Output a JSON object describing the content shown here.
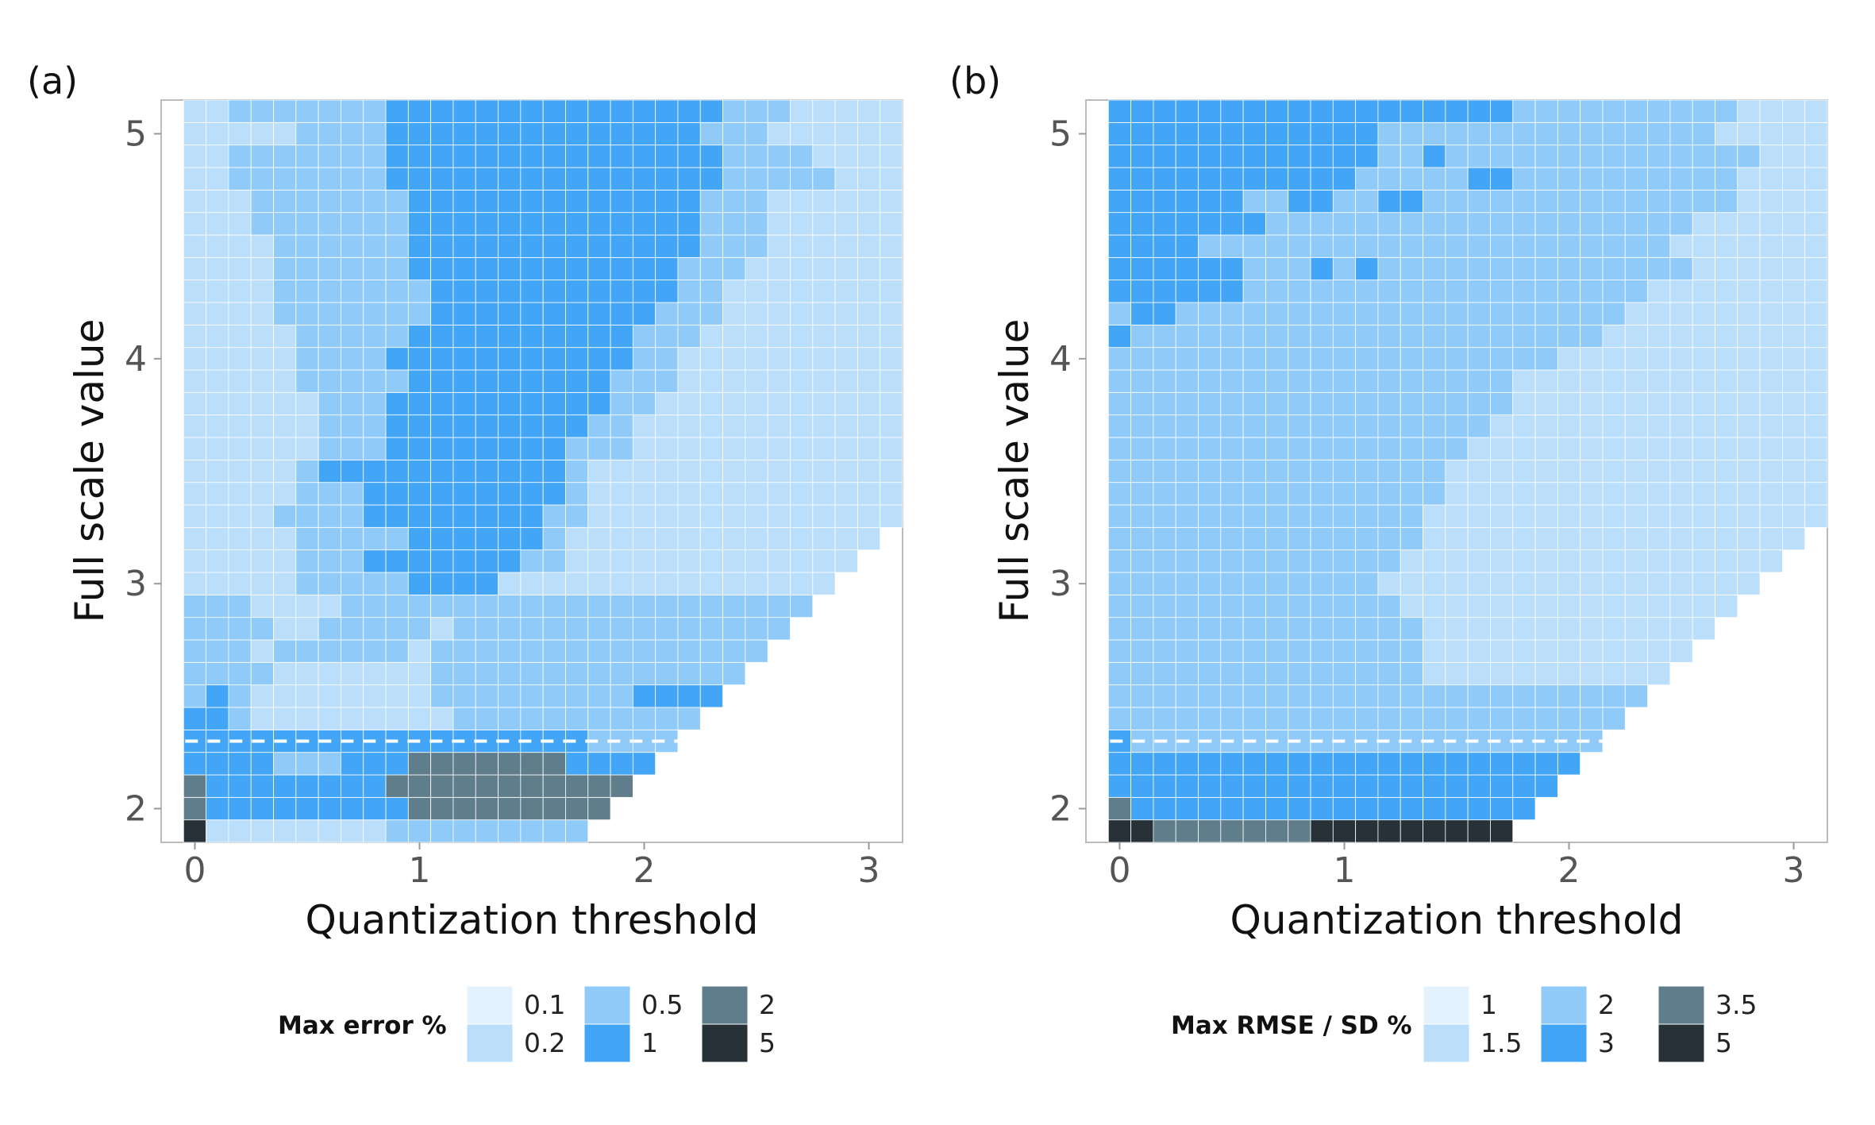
{
  "chart_data": [
    {
      "type": "heatmap",
      "panel_label": "(a)",
      "xlabel": "Quantization threshold",
      "ylabel": "Full scale value",
      "xlim": [
        -0.15,
        3.15
      ],
      "ylim": [
        1.85,
        5.15
      ],
      "x_ticks": [
        "0",
        "1",
        "2",
        "3"
      ],
      "y_ticks": [
        "2",
        "3",
        "4",
        "5"
      ],
      "cell_width": 0.1,
      "cell_height": 0.1,
      "x_start": 0.0,
      "y_start": 1.9,
      "valid_region": "cells exist only where quantization threshold is less than or equal to full scale value minus about 2",
      "dashed_line_y": 2.3,
      "legend": {
        "title": "Max error %",
        "position": "bottom",
        "entries": [
          {
            "label": "0.1",
            "color": "#e3f2fd"
          },
          {
            "label": "0.2",
            "color": "#bbdefb"
          },
          {
            "label": "0.5",
            "color": "#90caf9"
          },
          {
            "label": "1",
            "color": "#42a5f5"
          },
          {
            "label": "2",
            "color": "#607d8b"
          },
          {
            "label": "5",
            "color": "#263238"
          }
        ]
      },
      "rows": [
        {
          "y": 1.9,
          "cells": "511111111222222222"
        },
        {
          "y": 2.0,
          "cells": "4333333333444444444"
        },
        {
          "y": 2.1,
          "cells": "43333333344444444444"
        },
        {
          "y": 2.2,
          "cells": "333322233344444443333"
        },
        {
          "y": 2.3,
          "cells": "3333333333333333332222"
        },
        {
          "y": 2.4,
          "cells": "33211111111122222222222"
        },
        {
          "y": 2.5,
          "cells": "232111111112222222223333"
        },
        {
          "y": 2.6,
          "cells": "2222111111122222222222222"
        },
        {
          "y": 2.7,
          "cells": "22212222221222222222222222"
        },
        {
          "y": 2.8,
          "cells": "222211222221222222222222222"
        },
        {
          "y": 2.9,
          "cells": "2221111222222222222222222222"
        },
        {
          "y": 3.0,
          "cells": "11111222223333111111111111111"
        },
        {
          "y": 3.1,
          "cells": "111112223333333221111111111111"
        },
        {
          "y": 3.2,
          "cells": "1111122222333333211111111111111"
        },
        {
          "y": 3.3,
          "cells": "11112222333333332211111111111111"
        },
        {
          "y": 3.4,
          "cells": "11111222333333333211111111111111"
        },
        {
          "y": 3.5,
          "cells": "11111233333333333211111111111111"
        },
        {
          "y": 3.6,
          "cells": "11111122233333333222111111111111"
        },
        {
          "y": 3.7,
          "cells": "11111122233333333322111111111111"
        },
        {
          "y": 3.8,
          "cells": "11111122233333333332211111111111"
        },
        {
          "y": 3.9,
          "cells": "11111222223333333332221111111111"
        },
        {
          "y": 4.0,
          "cells": "11111222233333333333221111111111"
        },
        {
          "y": 4.1,
          "cells": "11111222223333333333222111111111"
        },
        {
          "y": 4.2,
          "cells": "11112222222333333333322211111111"
        },
        {
          "y": 4.3,
          "cells": "11112222222333333333332211111111"
        },
        {
          "y": 4.4,
          "cells": "11112222223333333333332221111111"
        },
        {
          "y": 4.5,
          "cells": "11112222223333333333333222111111"
        },
        {
          "y": 4.6,
          "cells": "11122222223333333333333222111111"
        },
        {
          "y": 4.7,
          "cells": "11122222223333333333333222111111"
        },
        {
          "y": 4.8,
          "cells": "11222222233333333333333322222111"
        },
        {
          "y": 4.9,
          "cells": "11222222233333333333333322221111"
        },
        {
          "y": 5.0,
          "cells": "11111222233333333333333222111111"
        },
        {
          "y": 5.1,
          "cells": "11222222233333333333333322211111"
        }
      ]
    },
    {
      "type": "heatmap",
      "panel_label": "(b)",
      "xlabel": "Quantization threshold",
      "ylabel": "Full scale value",
      "xlim": [
        -0.15,
        3.15
      ],
      "ylim": [
        1.85,
        5.15
      ],
      "x_ticks": [
        "0",
        "1",
        "2",
        "3"
      ],
      "y_ticks": [
        "2",
        "3",
        "4",
        "5"
      ],
      "cell_width": 0.1,
      "cell_height": 0.1,
      "x_start": 0.0,
      "y_start": 1.9,
      "dashed_line_y": 2.3,
      "legend": {
        "title": "Max RMSE / SD %",
        "position": "bottom",
        "entries": [
          {
            "label": "1",
            "color": "#e3f2fd"
          },
          {
            "label": "1.5",
            "color": "#bbdefb"
          },
          {
            "label": "2",
            "color": "#90caf9"
          },
          {
            "label": "3",
            "color": "#42a5f5"
          },
          {
            "label": "3.5",
            "color": "#607d8b"
          },
          {
            "label": "5",
            "color": "#263238"
          }
        ]
      },
      "rows": [
        {
          "y": 1.9,
          "cells": "554444444555555555"
        },
        {
          "y": 2.0,
          "cells": "4333333333333333333"
        },
        {
          "y": 2.1,
          "cells": "33333333333333333333"
        },
        {
          "y": 2.2,
          "cells": "333333333333333333333"
        },
        {
          "y": 2.3,
          "cells": "3222222222222222222222"
        },
        {
          "y": 2.4,
          "cells": "22222222222222222222222"
        },
        {
          "y": 2.5,
          "cells": "222222222222222222222222"
        },
        {
          "y": 2.6,
          "cells": "2222222222222211111111111"
        },
        {
          "y": 2.7,
          "cells": "22222222222222111111111111"
        },
        {
          "y": 2.8,
          "cells": "222222222222221111111111111"
        },
        {
          "y": 2.9,
          "cells": "2222222222222111111111111111"
        },
        {
          "y": 3.0,
          "cells": "22222222222211111111111111111"
        },
        {
          "y": 3.1,
          "cells": "222222222222211111111111111111"
        },
        {
          "y": 3.2,
          "cells": "2222222222222211111111111111111"
        },
        {
          "y": 3.3,
          "cells": "22222222222222111111111111111111"
        },
        {
          "y": 3.4,
          "cells": "22222222222222211111111111111111"
        },
        {
          "y": 3.5,
          "cells": "22222222222222211111111111111111"
        },
        {
          "y": 3.6,
          "cells": "22222222222222221111111111111111"
        },
        {
          "y": 3.7,
          "cells": "22222222222222222111111111111111"
        },
        {
          "y": 3.8,
          "cells": "22222222222222222211111111111111"
        },
        {
          "y": 3.9,
          "cells": "22222222222222222211111111111111"
        },
        {
          "y": 4.0,
          "cells": "22222222222222222222111111111111"
        },
        {
          "y": 4.1,
          "cells": "32222222222222222222221111111111"
        },
        {
          "y": 4.2,
          "cells": "23322222222222222222222111111111"
        },
        {
          "y": 4.3,
          "cells": "33333322222222222222222211111111"
        },
        {
          "y": 4.4,
          "cells": "33333322232322222222222222111111"
        },
        {
          "y": 4.5,
          "cells": "33332222222222222222222221111111"
        },
        {
          "y": 4.6,
          "cells": "33333332222222222222222222111111"
        },
        {
          "y": 4.7,
          "cells": "33333322332233222222222222221111"
        },
        {
          "y": 4.8,
          "cells": "33333333333222223322222222221111"
        },
        {
          "y": 4.9,
          "cells": "33333333333322322222222222222111"
        },
        {
          "y": 5.0,
          "cells": "33333333333322222222222222211111"
        },
        {
          "y": 5.1,
          "cells": "33333333333333333322222222221111"
        }
      ]
    }
  ]
}
